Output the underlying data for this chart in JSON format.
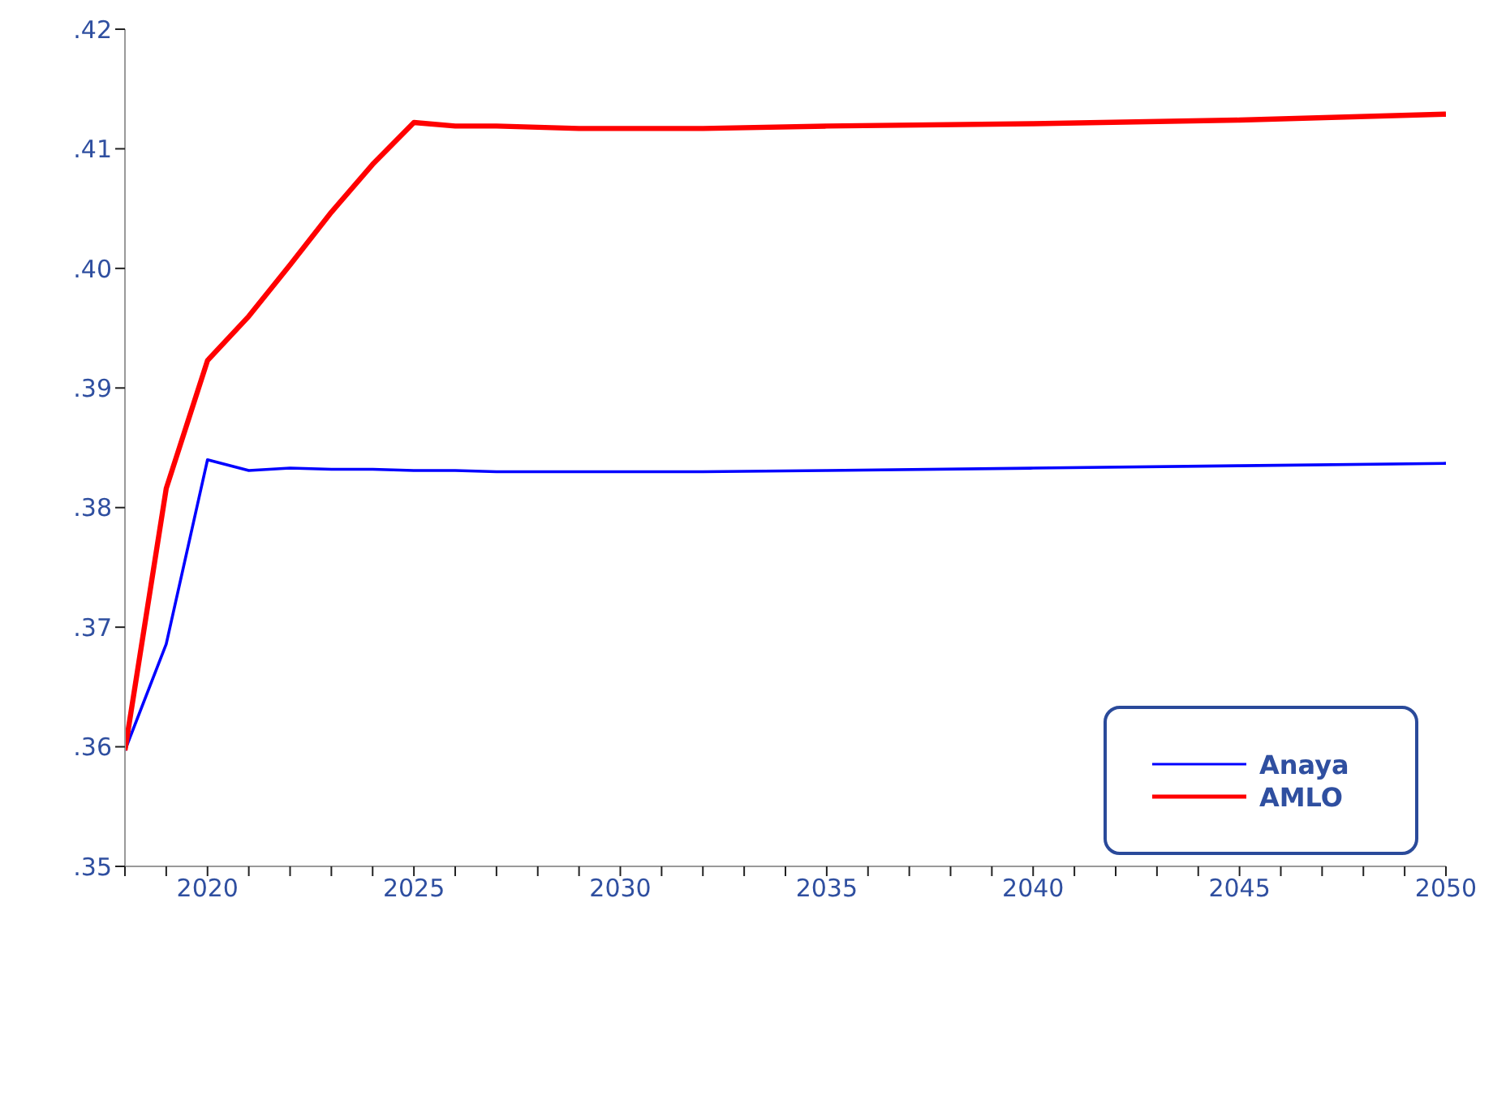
{
  "chart_data": {
    "type": "line",
    "x": [
      2018,
      2019,
      2020,
      2021,
      2022,
      2023,
      2024,
      2025,
      2026,
      2027,
      2029,
      2032,
      2035,
      2040,
      2045,
      2050
    ],
    "series": [
      {
        "name": "Anaya",
        "color": "#0000ff",
        "values": [
          0.3597,
          0.3686,
          0.384,
          0.3831,
          0.3833,
          0.3832,
          0.3832,
          0.3831,
          0.3831,
          0.383,
          0.383,
          0.383,
          0.3831,
          0.3833,
          0.3835,
          0.3837
        ]
      },
      {
        "name": "AMLO",
        "color": "#ff0000",
        "values": [
          0.3597,
          0.3816,
          0.3923,
          0.396,
          0.4003,
          0.4047,
          0.4087,
          0.4122,
          0.4119,
          0.4119,
          0.4117,
          0.4117,
          0.4119,
          0.4121,
          0.4124,
          0.4129
        ]
      }
    ],
    "xlim": [
      2018,
      2050
    ],
    "xticks": [
      {
        "value": 2018,
        "label": null
      },
      {
        "value": 2019,
        "label": null
      },
      2020,
      {
        "value": 2021,
        "label": null
      },
      {
        "value": 2022,
        "label": null
      },
      {
        "value": 2023,
        "label": null
      },
      {
        "value": 2024,
        "label": null
      },
      2025,
      {
        "value": 2026,
        "label": null
      },
      {
        "value": 2027,
        "label": null
      },
      {
        "value": 2028,
        "label": null
      },
      {
        "value": 2029,
        "label": null
      },
      2030,
      {
        "value": 2031,
        "label": null
      },
      {
        "value": 2032,
        "label": null
      },
      {
        "value": 2033,
        "label": null
      },
      {
        "value": 2034,
        "label": null
      },
      2035,
      {
        "value": 2036,
        "label": null
      },
      {
        "value": 2037,
        "label": null
      },
      {
        "value": 2038,
        "label": null
      },
      {
        "value": 2039,
        "label": null
      },
      2040,
      {
        "value": 2041,
        "label": null
      },
      {
        "value": 2042,
        "label": null
      },
      {
        "value": 2043,
        "label": null
      },
      {
        "value": 2044,
        "label": null
      },
      2045,
      {
        "value": 2046,
        "label": null
      },
      {
        "value": 2047,
        "label": null
      },
      {
        "value": 2048,
        "label": null
      },
      {
        "value": 2049,
        "label": null
      },
      2050
    ],
    "ylim": [
      0.35,
      0.42
    ],
    "yticks": [
      {
        "value": 0.35,
        "label": ".35"
      },
      {
        "value": 0.36,
        "label": ".36"
      },
      {
        "value": 0.37,
        "label": ".37"
      },
      {
        "value": 0.38,
        "label": ".38"
      },
      {
        "value": 0.39,
        "label": ".39"
      },
      {
        "value": 0.4,
        "label": ".40"
      },
      {
        "value": 0.41,
        "label": ".41"
      },
      {
        "value": 0.42,
        "label": ".42"
      }
    ],
    "grid": false,
    "legend": "bottom right",
    "marker": "none",
    "line_style": "solid"
  }
}
